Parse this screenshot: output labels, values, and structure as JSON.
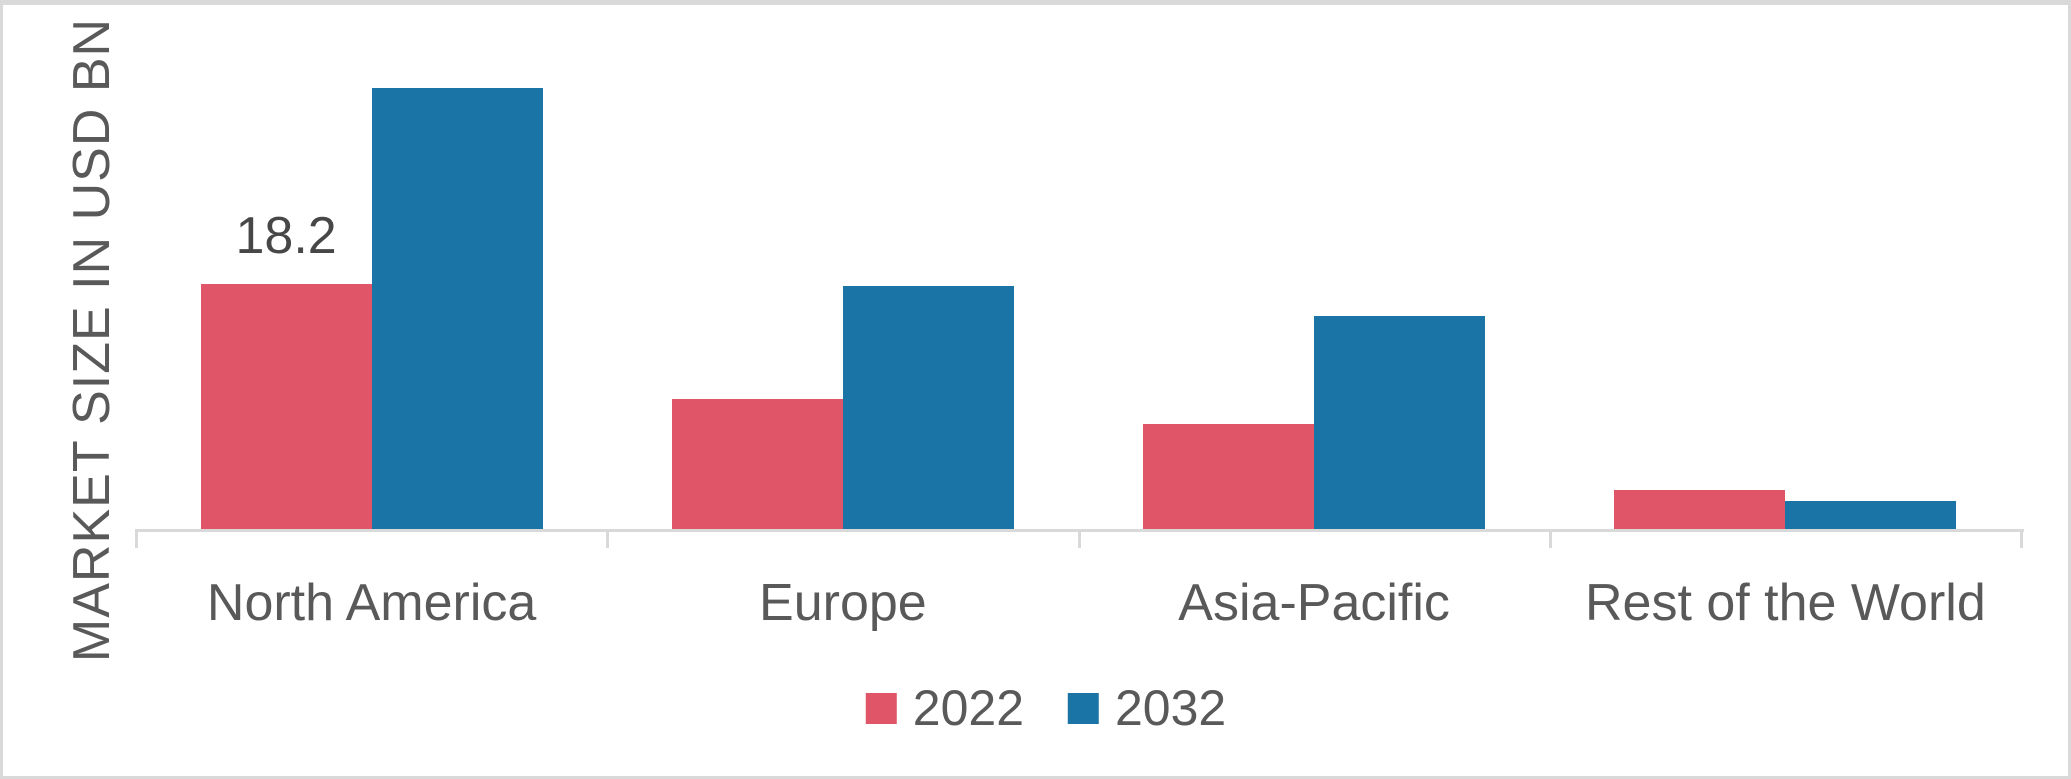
{
  "chart_data": {
    "type": "bar",
    "title": "",
    "xlabel": "",
    "ylabel": "MARKET SIZE IN USD BN",
    "categories": [
      "North America",
      "Europe",
      "Asia-Pacific",
      "Rest of the World"
    ],
    "series": [
      {
        "name": "2022",
        "color": "#E05567",
        "values": [
          18.2,
          9.7,
          7.8,
          2.9
        ]
      },
      {
        "name": "2032",
        "color": "#1B74A6",
        "values": [
          32.8,
          18.1,
          15.8,
          2.1
        ]
      }
    ],
    "ylim": [
      0,
      36.8
    ],
    "grid": false,
    "legend_position": "bottom",
    "data_labels": [
      {
        "series": "2022",
        "category": "North America",
        "text": "18.2"
      }
    ]
  },
  "colors": {
    "axis_line": "#D9D9D9",
    "text": "#595959",
    "data_label_text": "#474747",
    "background": "#FFFFFF",
    "frame_border": "#D9D9D9"
  }
}
